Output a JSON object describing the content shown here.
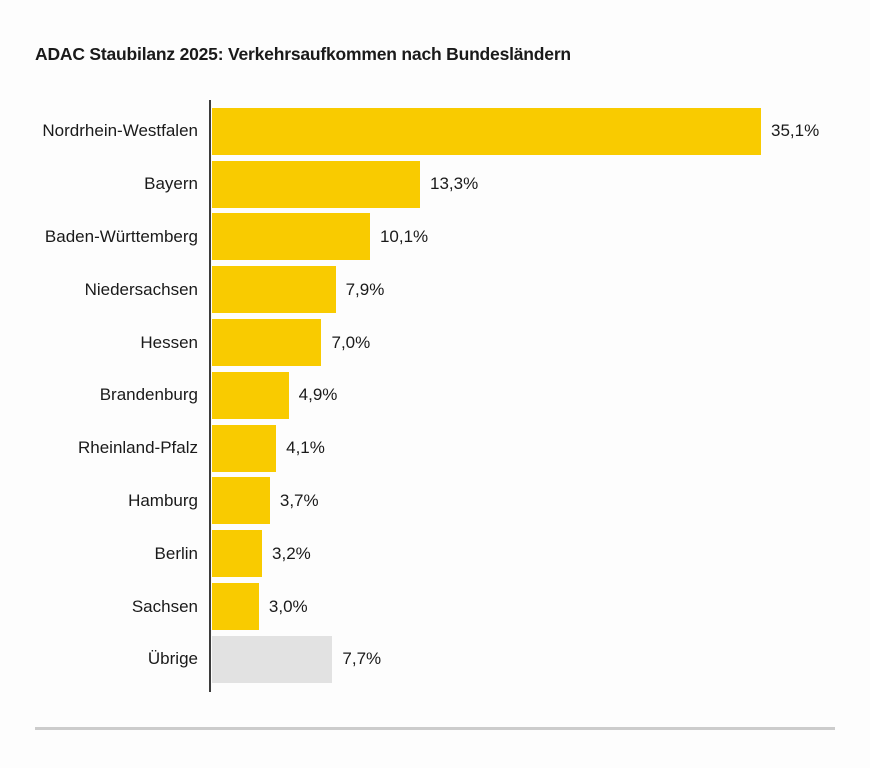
{
  "title": "ADAC Staubilanz 2025: Verkehrsaufkommen nach Bundesländern",
  "colors": {
    "bar": "#F9CB00",
    "muted_bar": "#E2E2E2",
    "axis": "#3C3C3C",
    "divider": "#CCCCCC",
    "text": "#1A1A1A",
    "background": "#FDFDFD"
  },
  "chart_data": {
    "type": "bar",
    "orientation": "horizontal",
    "title": "ADAC Staubilanz 2025: Verkehrsaufkommen nach Bundesländern",
    "xlabel": "",
    "ylabel": "",
    "xlim": [
      0,
      36
    ],
    "grid": false,
    "legend": "none",
    "value_label_position": "right-of-bar",
    "categories": [
      "Nordrhein-Westfalen",
      "Bayern",
      "Baden-Württemberg",
      "Niedersachsen",
      "Hessen",
      "Brandenburg",
      "Rheinland-Pfalz",
      "Hamburg",
      "Berlin",
      "Sachsen",
      "Übrige"
    ],
    "values": [
      35.1,
      13.3,
      10.1,
      7.9,
      7.0,
      4.9,
      4.1,
      3.7,
      3.2,
      3.0,
      7.7
    ],
    "rows": [
      {
        "label": "Nordrhein-Westfalen",
        "value": 35.1,
        "display": "35,1%",
        "muted": false
      },
      {
        "label": "Bayern",
        "value": 13.3,
        "display": "13,3%",
        "muted": false
      },
      {
        "label": "Baden-Württemberg",
        "value": 10.1,
        "display": "10,1%",
        "muted": false
      },
      {
        "label": "Niedersachsen",
        "value": 7.9,
        "display": "7,9%",
        "muted": false
      },
      {
        "label": "Hessen",
        "value": 7.0,
        "display": "7,0%",
        "muted": false
      },
      {
        "label": "Brandenburg",
        "value": 4.9,
        "display": "4,9%",
        "muted": false
      },
      {
        "label": "Rheinland-Pfalz",
        "value": 4.1,
        "display": "4,1%",
        "muted": false
      },
      {
        "label": "Hamburg",
        "value": 3.7,
        "display": "3,7%",
        "muted": false
      },
      {
        "label": "Berlin",
        "value": 3.2,
        "display": "3,2%",
        "muted": false
      },
      {
        "label": "Sachsen",
        "value": 3.0,
        "display": "3,0%",
        "muted": false
      },
      {
        "label": "Übrige",
        "value": 7.7,
        "display": "7,7%",
        "muted": true
      }
    ]
  }
}
